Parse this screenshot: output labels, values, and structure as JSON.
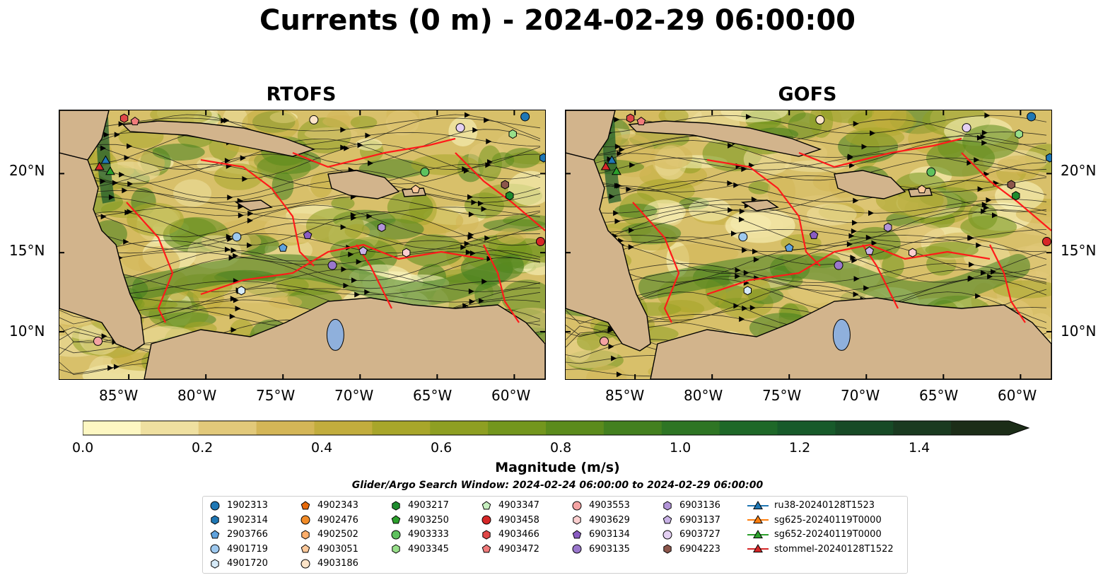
{
  "title": "Currents (0 m) - 2024-02-29 06:00:00",
  "panels": [
    {
      "title": "RTOFS"
    },
    {
      "title": "GOFS"
    }
  ],
  "lon_ticks": [
    "85°W",
    "80°W",
    "75°W",
    "70°W",
    "65°W",
    "60°W"
  ],
  "lat_ticks": [
    "20°N",
    "15°N",
    "10°N"
  ],
  "map_extent": {
    "lon": [
      -89.5,
      -58.0
    ],
    "lat": [
      7.0,
      24.0
    ]
  },
  "colorbar": {
    "label": "Magnitude (m/s)",
    "ticks": [
      "0.0",
      "0.2",
      "0.4",
      "0.6",
      "0.8",
      "1.0",
      "1.2",
      "1.4"
    ],
    "range": [
      0.0,
      1.5
    ],
    "colors": [
      "#fdf7c2",
      "#efe0a0",
      "#e2c97a",
      "#d4b657",
      "#c2ad3d",
      "#a8a62a",
      "#8e9f22",
      "#73961d",
      "#5b8b1c",
      "#43801f",
      "#2e7524",
      "#1e6828",
      "#175a2a",
      "#174a26",
      "#1a3a20",
      "#1c2d18"
    ]
  },
  "search_window": "Glider/Argo Search Window: 2024-02-24 06:00:00 to 2024-02-29 06:00:00",
  "legend": [
    {
      "label": "1902313",
      "marker": "circle",
      "color": "#1f77b4"
    },
    {
      "label": "1902314",
      "marker": "hexagon",
      "color": "#1f77b4"
    },
    {
      "label": "2903766",
      "marker": "pentagon",
      "color": "#5fa2dd"
    },
    {
      "label": "4901719",
      "marker": "circle",
      "color": "#9ec9ef"
    },
    {
      "label": "4901720",
      "marker": "hexagon",
      "color": "#d6eaf8"
    },
    {
      "label": "4902343",
      "marker": "pentagon",
      "color": "#e6690a"
    },
    {
      "label": "4902476",
      "marker": "circle",
      "color": "#f28c28"
    },
    {
      "label": "4902502",
      "marker": "hexagon",
      "color": "#fdae6b"
    },
    {
      "label": "4903051",
      "marker": "pentagon",
      "color": "#fdc99b"
    },
    {
      "label": "4903186",
      "marker": "circle",
      "color": "#fde4c8"
    },
    {
      "label": "4903217",
      "marker": "hexagon",
      "color": "#1e8c2e"
    },
    {
      "label": "4903250",
      "marker": "pentagon",
      "color": "#2ca02c"
    },
    {
      "label": "4903333",
      "marker": "circle",
      "color": "#5ec15e"
    },
    {
      "label": "4903345",
      "marker": "hexagon",
      "color": "#98df8a"
    },
    {
      "label": "4903347",
      "marker": "pentagon",
      "color": "#c7f0c0"
    },
    {
      "label": "4903458",
      "marker": "circle",
      "color": "#d62728"
    },
    {
      "label": "4903466",
      "marker": "hexagon",
      "color": "#e04848"
    },
    {
      "label": "4903472",
      "marker": "pentagon",
      "color": "#f07b7b"
    },
    {
      "label": "4903553",
      "marker": "circle",
      "color": "#f4a3a3"
    },
    {
      "label": "4903629",
      "marker": "hexagon",
      "color": "#fbcfcf"
    },
    {
      "label": "6903134",
      "marker": "pentagon",
      "color": "#8a5cc2"
    },
    {
      "label": "6903135",
      "marker": "circle",
      "color": "#9a77cc"
    },
    {
      "label": "6903136",
      "marker": "hexagon",
      "color": "#b294d8"
    },
    {
      "label": "6903137",
      "marker": "pentagon",
      "color": "#c9b2e6"
    },
    {
      "label": "6903727",
      "marker": "circle",
      "color": "#e4d0f2"
    },
    {
      "label": "6904223",
      "marker": "hexagon",
      "color": "#8c564b"
    },
    {
      "label": "ru38-20240128T1523",
      "marker": "triangle-line",
      "color": "#1f77b4"
    },
    {
      "label": "sg625-20240119T0000",
      "marker": "triangle-line",
      "color": "#ff7f0e"
    },
    {
      "label": "sg652-20240119T0000",
      "marker": "triangle-line",
      "color": "#2ca02c"
    },
    {
      "label": "stommel-20240128T1522",
      "marker": "triangle-line",
      "color": "#d62728"
    }
  ],
  "floats_on_map": [
    {
      "id": "1902313",
      "lon": -59.3,
      "lat": 23.6
    },
    {
      "id": "1902314",
      "lon": -58.1,
      "lat": 21.0
    },
    {
      "id": "6903727",
      "lon": -63.5,
      "lat": 22.9
    },
    {
      "id": "4903345",
      "lon": -60.1,
      "lat": 22.5
    },
    {
      "id": "4903333",
      "lon": -65.8,
      "lat": 20.1
    },
    {
      "id": "6904223",
      "lon": -60.6,
      "lat": 19.3
    },
    {
      "id": "4903217",
      "lon": -60.3,
      "lat": 18.6
    },
    {
      "id": "4903051",
      "lon": -66.4,
      "lat": 19.0
    },
    {
      "id": "6903136",
      "lon": -68.6,
      "lat": 16.6
    },
    {
      "id": "6903134",
      "lon": -73.4,
      "lat": 16.1
    },
    {
      "id": "4901719",
      "lon": -78.0,
      "lat": 16.0
    },
    {
      "id": "2903766",
      "lon": -75.0,
      "lat": 15.3
    },
    {
      "id": "6903137",
      "lon": -69.8,
      "lat": 15.1
    },
    {
      "id": "4903629",
      "lon": -67.0,
      "lat": 15.0
    },
    {
      "id": "6903135",
      "lon": -71.8,
      "lat": 14.2
    },
    {
      "id": "4903458",
      "lon": -58.3,
      "lat": 15.7
    },
    {
      "id": "4901720",
      "lon": -77.7,
      "lat": 12.6
    },
    {
      "id": "4903553",
      "lon": -87.0,
      "lat": 9.4
    },
    {
      "id": "4903472",
      "lon": -84.6,
      "lat": 23.3
    },
    {
      "id": "4903466",
      "lon": -85.3,
      "lat": 23.5
    },
    {
      "id": "4903186",
      "lon": -73.0,
      "lat": 23.4
    }
  ],
  "gliders_on_map": [
    {
      "id": "ru38-20240128T1523",
      "lon": -86.5,
      "lat": 20.8
    },
    {
      "id": "sg652-20240119T0000",
      "lon": -86.2,
      "lat": 20.1
    },
    {
      "id": "stommel-20240128T1522",
      "lon": -86.9,
      "lat": 20.4
    }
  ]
}
